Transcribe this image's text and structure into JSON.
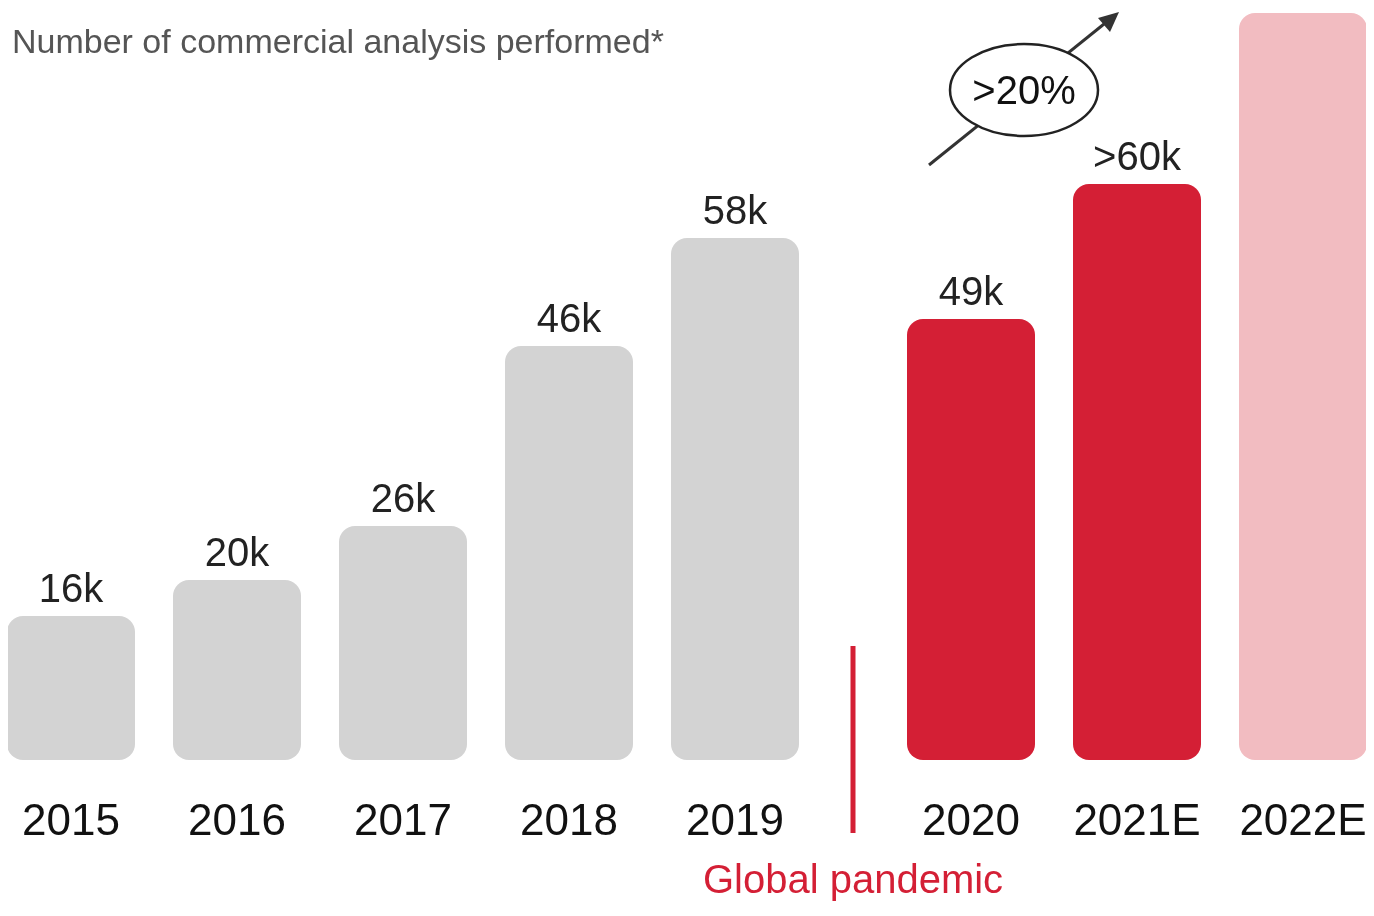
{
  "chart_data": {
    "type": "bar",
    "title": "Number of commercial analysis performed*",
    "categories": [
      "2015",
      "2016",
      "2017",
      "2018",
      "2019",
      "2020",
      "2021E",
      "2022E"
    ],
    "values": [
      16,
      20,
      26,
      46,
      58,
      49,
      64,
      83
    ],
    "colors": [
      "#d3d3d3",
      "#d3d3d3",
      "#d3d3d3",
      "#d3d3d3",
      "#d3d3d3",
      "#d41f35",
      "#d41f35",
      "#f2bcc1"
    ],
    "value_labels": [
      "16k",
      "20k",
      "26k",
      "46k",
      "58k",
      "49k",
      ">60k",
      null
    ],
    "annotations": [
      ">20%",
      "Global pandemic"
    ]
  }
}
